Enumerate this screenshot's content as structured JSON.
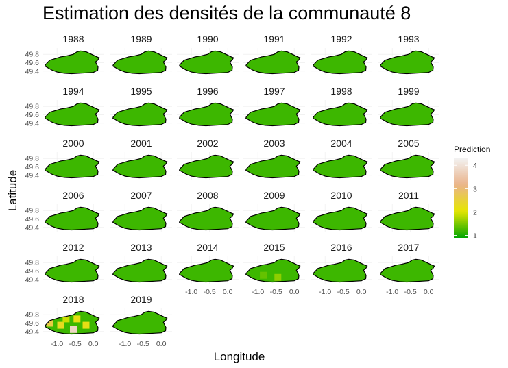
{
  "chart_data": {
    "type": "heatmap",
    "title": "Estimation des densités de la communauté 8",
    "xlabel": "Longitude",
    "ylabel": "Latitude",
    "x_ticks": [
      -1.0,
      -0.5,
      0.0
    ],
    "x_tick_labels": [
      "-1.0",
      "-0.5",
      "0.0"
    ],
    "y_ticks": [
      49.4,
      49.6,
      49.8
    ],
    "y_tick_labels": [
      "49.4",
      "49.6",
      "49.8"
    ],
    "xlim": [
      -1.4,
      0.3
    ],
    "ylim": [
      49.3,
      49.95
    ],
    "facets": [
      "1988",
      "1989",
      "1990",
      "1991",
      "1992",
      "1993",
      "1994",
      "1995",
      "1996",
      "1997",
      "1998",
      "1999",
      "2000",
      "2001",
      "2002",
      "2003",
      "2004",
      "2005",
      "2006",
      "2007",
      "2008",
      "2009",
      "2010",
      "2011",
      "2012",
      "2013",
      "2014",
      "2015",
      "2016",
      "2017",
      "2018",
      "2019"
    ],
    "base_prediction": 1.2,
    "hotspots": [
      {
        "facet": "2015",
        "lon": -0.45,
        "lat": 49.45,
        "value": 1.6
      },
      {
        "facet": "2015",
        "lon": -0.85,
        "lat": 49.5,
        "value": 1.4
      },
      {
        "facet": "2018",
        "lon": -0.45,
        "lat": 49.7,
        "value": 2.2
      },
      {
        "facet": "2018",
        "lon": -0.9,
        "lat": 49.55,
        "value": 2.3
      },
      {
        "facet": "2018",
        "lon": -1.2,
        "lat": 49.6,
        "value": 2.6
      },
      {
        "facet": "2018",
        "lon": -0.55,
        "lat": 49.45,
        "value": 3.8
      },
      {
        "facet": "2018",
        "lon": -0.2,
        "lat": 49.55,
        "value": 2.2
      },
      {
        "facet": "2018",
        "lon": -0.75,
        "lat": 49.7,
        "value": 1.9
      }
    ],
    "legend": {
      "title": "Prediction",
      "ticks": [
        1,
        2,
        3,
        4
      ],
      "tick_labels": [
        "1",
        "2",
        "3",
        "4"
      ],
      "range": [
        0.9,
        4.3
      ],
      "colors": [
        "#00a600",
        "#e6e600",
        "#eab38a",
        "#f2f2f2"
      ],
      "placement": "right"
    },
    "grid": true
  }
}
